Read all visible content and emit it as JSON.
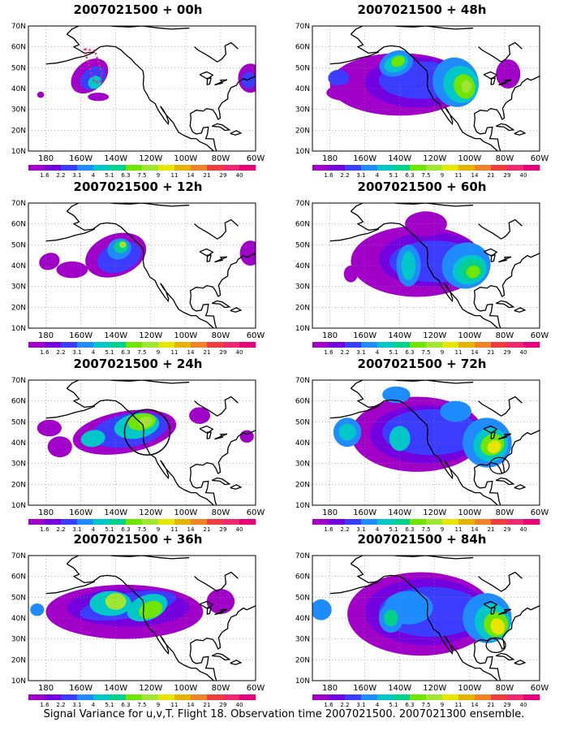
{
  "caption": "Signal Variance for u,v,T. Flight 18. Observation time 2007021500. 2007021300 ensemble.",
  "lat_ticks": [
    "70N",
    "60N",
    "50N",
    "40N",
    "30N",
    "20N",
    "10N"
  ],
  "lon_ticks": [
    "180",
    "160W",
    "140W",
    "120W",
    "100W",
    "80W",
    "60W"
  ],
  "colorbar": {
    "labels": [
      "1.6",
      "2.2",
      "3.1",
      "4",
      "5.1",
      "6.3",
      "7.5",
      "9",
      "11",
      "14",
      "21",
      "29",
      "40"
    ],
    "colors": [
      "#a000c8",
      "#7400e0",
      "#3c3cff",
      "#1e8cff",
      "#00c8c8",
      "#00d28c",
      "#6ee600",
      "#a0e632",
      "#e6e600",
      "#e6b400",
      "#f08228",
      "#f03c3c",
      "#f0286e",
      "#e6007a"
    ]
  },
  "panels": [
    {
      "id": "p00",
      "title": "2007021500 + 00h"
    },
    {
      "id": "p48",
      "title": "2007021500 + 48h"
    },
    {
      "id": "p12",
      "title": "2007021500 + 12h"
    },
    {
      "id": "p60",
      "title": "2007021500 + 60h"
    },
    {
      "id": "p24",
      "title": "2007021500 + 24h"
    },
    {
      "id": "p72",
      "title": "2007021500 + 72h"
    },
    {
      "id": "p36",
      "title": "2007021500 + 36h"
    },
    {
      "id": "p84",
      "title": "2007021500 + 84h"
    }
  ]
}
